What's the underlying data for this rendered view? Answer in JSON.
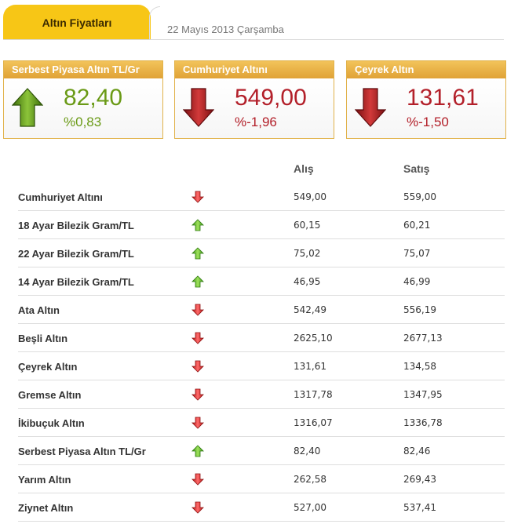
{
  "header": {
    "tab_title": "Altın Fiyatları",
    "date": "22 Mayıs 2013 Çarşamba"
  },
  "summary": [
    {
      "title": "Serbest Piyasa Altın TL/Gr",
      "value": "82,40",
      "change": "%0,83",
      "direction": "up",
      "icon": "green-up-arrow-icon"
    },
    {
      "title": "Cumhuriyet Altını",
      "value": "549,00",
      "change": "%-1,96",
      "direction": "down",
      "icon": "red-down-arrow-icon"
    },
    {
      "title": "Çeyrek Altın",
      "value": "131,61",
      "change": "%-1,50",
      "direction": "down",
      "icon": "red-down-arrow-icon"
    }
  ],
  "table": {
    "headers": {
      "buy": "Alış",
      "sell": "Satış"
    },
    "rows": [
      {
        "name": "Cumhuriyet Altını",
        "direction": "down",
        "buy": "549,00",
        "sell": "559,00"
      },
      {
        "name": "18 Ayar Bilezik Gram/TL",
        "direction": "up",
        "buy": "60,15",
        "sell": "60,21"
      },
      {
        "name": "22 Ayar Bilezik Gram/TL",
        "direction": "up",
        "buy": "75,02",
        "sell": "75,07"
      },
      {
        "name": "14 Ayar Bilezik Gram/TL",
        "direction": "up",
        "buy": "46,95",
        "sell": "46,99"
      },
      {
        "name": "Ata Altın",
        "direction": "down",
        "buy": "542,49",
        "sell": "556,19"
      },
      {
        "name": "Beşli Altın",
        "direction": "down",
        "buy": "2625,10",
        "sell": "2677,13"
      },
      {
        "name": "Çeyrek Altın",
        "direction": "down",
        "buy": "131,61",
        "sell": "134,58"
      },
      {
        "name": "Gremse Altın",
        "direction": "down",
        "buy": "1317,78",
        "sell": "1347,95"
      },
      {
        "name": "İkibuçuk Altın",
        "direction": "down",
        "buy": "1316,07",
        "sell": "1336,78"
      },
      {
        "name": "Serbest Piyasa Altın TL/Gr",
        "direction": "up",
        "buy": "82,40",
        "sell": "82,46"
      },
      {
        "name": "Yarım Altın",
        "direction": "down",
        "buy": "262,58",
        "sell": "269,43"
      },
      {
        "name": "Ziynet Altın",
        "direction": "down",
        "buy": "527,00",
        "sell": "537,41"
      }
    ]
  },
  "colors": {
    "up": "#6a9a16",
    "down": "#b3202a",
    "accent": "#f7c616",
    "box_head": "#e3a83c"
  }
}
